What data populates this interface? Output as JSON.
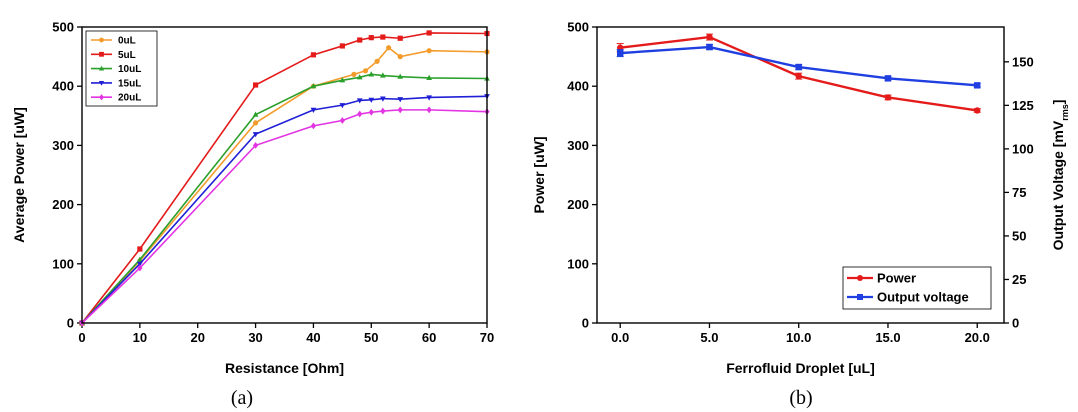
{
  "chart_data": [
    {
      "type": "line",
      "panel_label": "(a)",
      "xlabel": "Resistance [Ohm]",
      "ylabel": "Average Power [uW]",
      "xlim": [
        0,
        70
      ],
      "ylim": [
        0,
        500
      ],
      "xticks": [
        0,
        10,
        20,
        30,
        40,
        50,
        60,
        70
      ],
      "yticks": [
        0,
        100,
        200,
        300,
        400,
        500
      ],
      "legend_position": "top-left",
      "series": [
        {
          "name": "0uL",
          "color": "#f39c2c",
          "marker": "circle",
          "x": [
            0,
            10,
            30,
            40,
            47,
            49,
            51,
            53,
            55,
            60,
            70
          ],
          "y": [
            0,
            105,
            338,
            400,
            420,
            426,
            442,
            465,
            450,
            460,
            458
          ]
        },
        {
          "name": "5uL",
          "color": "#e41b1b",
          "marker": "square",
          "x": [
            0,
            10,
            30,
            40,
            45,
            48,
            50,
            52,
            55,
            60,
            70
          ],
          "y": [
            0,
            125,
            402,
            453,
            468,
            478,
            482,
            483,
            481,
            490,
            489
          ]
        },
        {
          "name": "10uL",
          "color": "#2ca02c",
          "marker": "triangle-up",
          "x": [
            0,
            10,
            30,
            40,
            45,
            48,
            50,
            52,
            55,
            60,
            70
          ],
          "y": [
            0,
            107,
            352,
            400,
            410,
            415,
            420,
            418,
            416,
            414,
            413
          ]
        },
        {
          "name": "15uL",
          "color": "#1f1fd6",
          "marker": "triangle-down",
          "x": [
            0,
            10,
            30,
            40,
            45,
            48,
            50,
            52,
            55,
            60,
            70
          ],
          "y": [
            0,
            100,
            319,
            360,
            368,
            376,
            377,
            379,
            378,
            381,
            383
          ]
        },
        {
          "name": "20uL",
          "color": "#e334e3",
          "marker": "diamond",
          "x": [
            0,
            10,
            30,
            40,
            45,
            48,
            50,
            52,
            55,
            60,
            70
          ],
          "y": [
            0,
            93,
            300,
            333,
            342,
            353,
            356,
            358,
            360,
            360,
            357
          ]
        }
      ]
    },
    {
      "type": "line",
      "panel_label": "(b)",
      "xlabel": "Ferrofluid Droplet [uL]",
      "ylabel": "Power [uW]",
      "ylabel_right_prefix": "Output Voltage [mV",
      "ylabel_right_sub": "rms",
      "ylabel_right_suffix": "]",
      "x": [
        0,
        5,
        10,
        15,
        20
      ],
      "xticks": [
        0,
        5,
        10,
        15,
        20
      ],
      "xtick_labels": [
        "0.0",
        "5.0",
        "10.0",
        "15.0",
        "20.0"
      ],
      "xlim": [
        -1.3,
        21.5
      ],
      "ylim": [
        0,
        500
      ],
      "yticks": [
        0,
        100,
        200,
        300,
        400,
        500
      ],
      "ylim_right": [
        0,
        170
      ],
      "yticks_right": [
        0,
        25,
        50,
        75,
        100,
        125,
        150
      ],
      "legend_position": "bottom-right",
      "series": [
        {
          "name": "Power",
          "color": "#e41b1b",
          "marker": "circle",
          "axis": "left",
          "values": [
            465,
            483,
            417,
            381,
            359
          ],
          "errors": [
            7,
            5,
            5,
            4,
            3
          ]
        },
        {
          "name": "Output voltage",
          "color": "#1f3fe0",
          "marker": "square",
          "axis": "right",
          "values": [
            155,
            158.5,
            147,
            140.5,
            136.5
          ],
          "errors": [
            2,
            1.5,
            1.5,
            1,
            1
          ]
        }
      ]
    }
  ]
}
